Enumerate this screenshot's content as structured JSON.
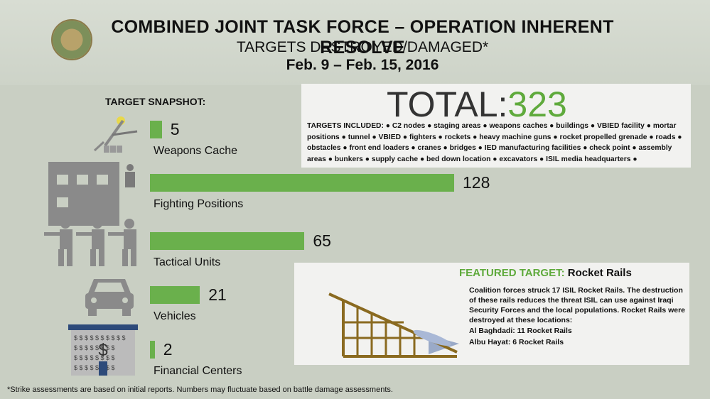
{
  "header": {
    "title": "COMBINED JOINT TASK FORCE – OPERATION INHERENT RESOLVE",
    "subtitle": "TARGETS DESTROYED/DAMAGED*",
    "date_range": "Feb. 9 – Feb. 15,  2016"
  },
  "snapshot_label": "TARGET SNAPSHOT:",
  "total": {
    "label": "TOTAL:",
    "value": "323"
  },
  "targets_included": "TARGETS INCLUDED: ● C2 nodes ● staging areas ● weapons caches ● buildings ● VBIED facility ● mortar positions ● tunnel ● VBIED ● fighters ● rockets ● heavy machine guns ● rocket propelled grenade ● roads ● obstacles ● front end loaders ● cranes ● bridges ● IED manufacturing facilities ● check point ● assembly areas ● bunkers ● supply cache ● bed down location ● excavators ● ISIL media headquarters ●",
  "featured": {
    "label": "FEATURED TARGET:",
    "name": "Rocket Rails",
    "text": "Coalition forces struck 17 ISIL Rocket Rails.  The destruction of these rails reduces the threat ISIL can use against Iraqi Security Forces and the local populations.  Rocket Rails were destroyed at these locations:",
    "loc1": "Al Baghdadi: 11 Rocket Rails",
    "loc2": "Albu Hayat: 6 Rocket Rails"
  },
  "footnote": "*Strike assessments are based on initial reports. Numbers may fluctuate based on battle damage assessments.",
  "colors": {
    "bar": "#6ab04c",
    "total_number": "#5faa3c",
    "icon": "#8a8a8a",
    "panel": "#f2f2f0"
  },
  "chart_data": {
    "type": "bar",
    "orientation": "horizontal",
    "categories": [
      "Weapons Cache",
      "Fighting Positions",
      "Tactical Units",
      "Vehicles",
      "Financial Centers"
    ],
    "values": [
      5,
      128,
      65,
      21,
      2
    ],
    "value_labels": [
      "5",
      "128",
      "65",
      "21",
      "2"
    ],
    "icons": [
      "weapons-cache-icon",
      "building-icon",
      "soldiers-icon",
      "car-icon",
      "bank-icon"
    ]
  }
}
